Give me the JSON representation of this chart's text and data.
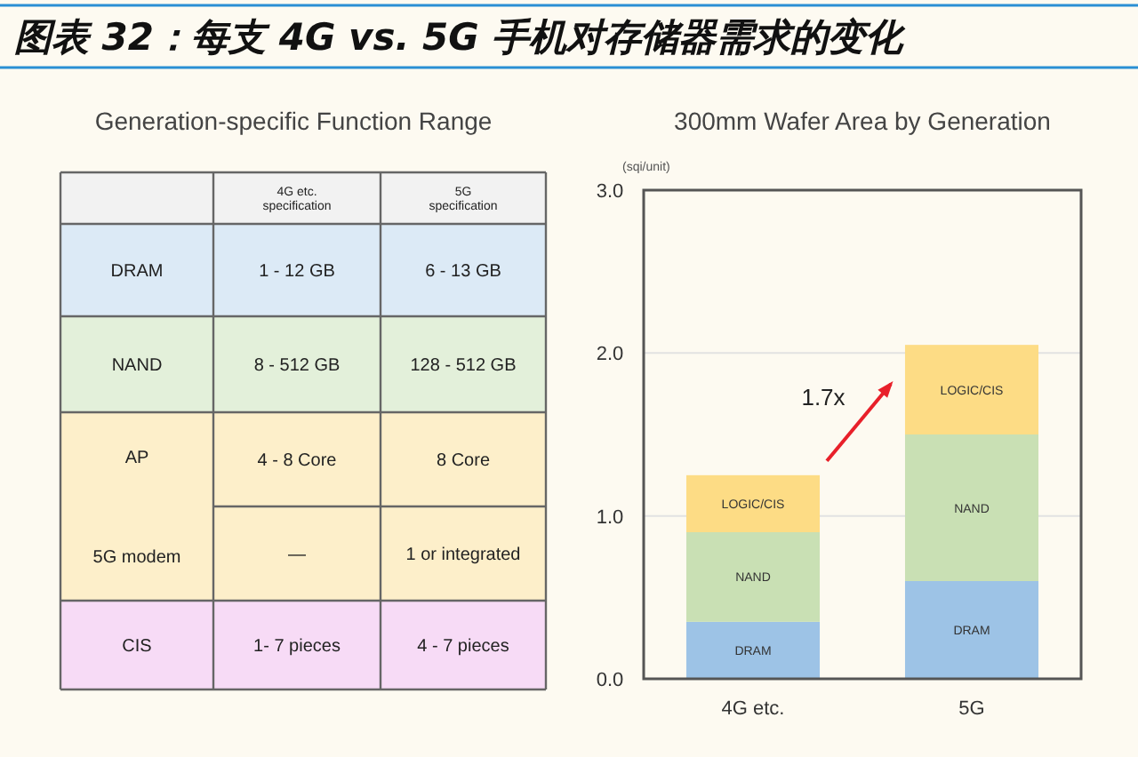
{
  "chart_data": [
    {
      "type": "other",
      "title": "图表 32：每支 4G vs. 5G 手机对存储器需求的变化",
      "subtitle": "Generation-specific Function Range",
      "annotations": [
        "4G etc. specification",
        "5G specification",
        "DRAM",
        "1 - 12 GB",
        "6 - 13 GB",
        "NAND",
        "8 - 512 GB",
        "128 - 512 GB",
        "AP",
        "4 - 8 Core",
        "8 Core",
        "5G modem",
        "—",
        "1 or integrated",
        "CIS",
        "1- 7 pieces",
        "4 - 7 pieces"
      ]
    },
    {
      "type": "bar",
      "stacked": true,
      "title": "300mm Wafer Area by Generation",
      "ylabel": "(sqi/unit)",
      "categories": [
        "4G etc.",
        "5G"
      ],
      "series": [
        {
          "name": "DRAM",
          "color": "#9dc3e6",
          "values": [
            0.35,
            0.6
          ]
        },
        {
          "name": "NAND",
          "color": "#c9e0b4",
          "values": [
            0.55,
            0.9
          ]
        },
        {
          "name": "LOGIC/CIS",
          "color": "#fddc85",
          "values": [
            0.35,
            0.55
          ]
        }
      ],
      "ylim": [
        0,
        3
      ],
      "yticks": [
        {
          "value": 0,
          "label": "0.0"
        },
        {
          "value": 1,
          "label": "1.0"
        },
        {
          "value": 2,
          "label": "2.0"
        },
        {
          "value": 3,
          "label": "3.0"
        }
      ],
      "grid": "y",
      "annotations": [
        "1.7x"
      ]
    }
  ]
}
